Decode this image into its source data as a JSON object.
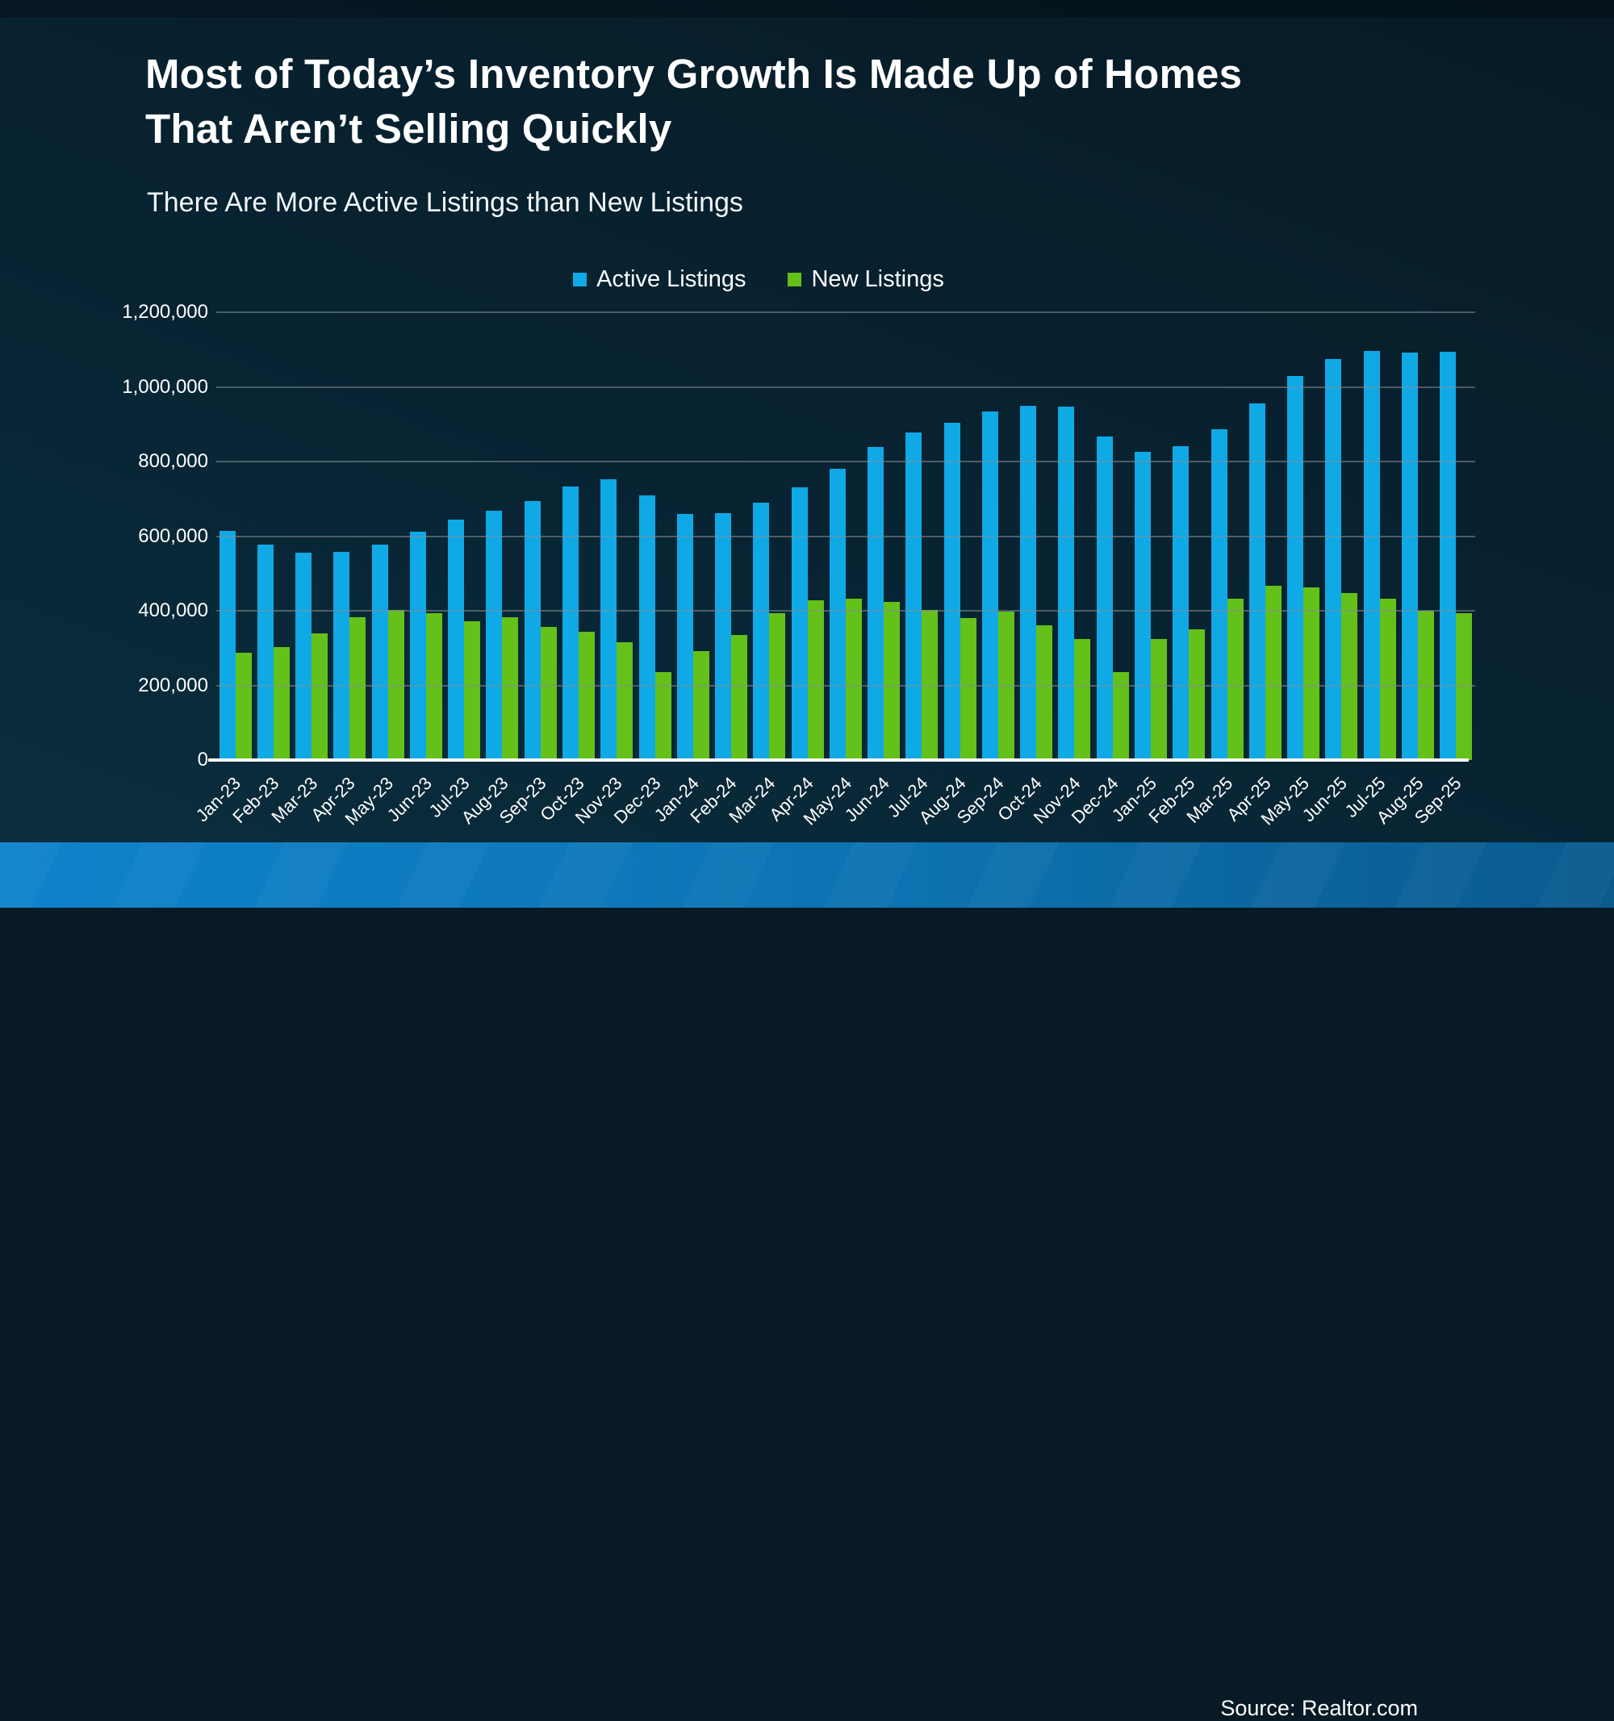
{
  "slide": {
    "title_line1": "Most of Today’s Inventory Growth Is Made Up of Homes",
    "title_line2": "That Aren’t Selling Quickly",
    "subtitle": "There Are More Active Listings than New Listings",
    "source": "Source: Realtor.com"
  },
  "colors": {
    "background": "#082433",
    "active_listings_blue": "#0FA9E6",
    "new_listings_green": "#63C119",
    "gridline_gray": "#4e5961",
    "axis_line_white": "#ffffff",
    "footer_blue_left": "#0e82cb",
    "footer_blue_right": "#0a5a8e",
    "text_white": "#ffffff"
  },
  "chart_data": {
    "type": "bar",
    "title": "There Are More Active Listings than New Listings",
    "xlabel": "",
    "ylabel": "",
    "ylim": [
      0,
      1200000
    ],
    "ytick_interval": 200000,
    "grid": true,
    "legend_position": "top-center",
    "ytick_labels": [
      "0",
      "200,000",
      "400,000",
      "600,000",
      "800,000",
      "1,000,000",
      "1,200,000"
    ],
    "categories": [
      "Jan-23",
      "Feb-23",
      "Mar-23",
      "Apr-23",
      "May-23",
      "Jun-23",
      "Jul-23",
      "Aug-23",
      "Sep-23",
      "Oct-23",
      "Nov-23",
      "Dec-23",
      "Jan-24",
      "Feb-24",
      "Mar-24",
      "Apr-24",
      "May-24",
      "Jun-24",
      "Jul-24",
      "Aug-24",
      "Sep-24",
      "Oct-24",
      "Nov-24",
      "Dec-24",
      "Jan-25",
      "Feb-25",
      "Mar-25",
      "Apr-25",
      "May-25",
      "Jun-25",
      "Jul-25",
      "Aug-25",
      "Sep-25"
    ],
    "series": [
      {
        "name": "Active Listings",
        "color": "#0FA9E6",
        "values": [
          615000,
          578000,
          556000,
          558000,
          578000,
          612000,
          645000,
          668000,
          695000,
          733000,
          752000,
          710000,
          660000,
          661000,
          690000,
          730000,
          780000,
          838000,
          878000,
          903000,
          935000,
          950000,
          947000,
          868000,
          825000,
          842000,
          887000,
          955000,
          1030000,
          1075000,
          1097000,
          1093000,
          1094000
        ]
      },
      {
        "name": "New Listings",
        "color": "#63C119",
        "values": [
          288000,
          303000,
          340000,
          383000,
          402000,
          393000,
          373000,
          383000,
          356000,
          344000,
          315000,
          235000,
          292000,
          336000,
          393000,
          428000,
          432000,
          424000,
          402000,
          381000,
          398000,
          362000,
          324000,
          236000,
          324000,
          350000,
          432000,
          468000,
          462000,
          448000,
          433000,
          400000,
          394000
        ]
      }
    ]
  }
}
